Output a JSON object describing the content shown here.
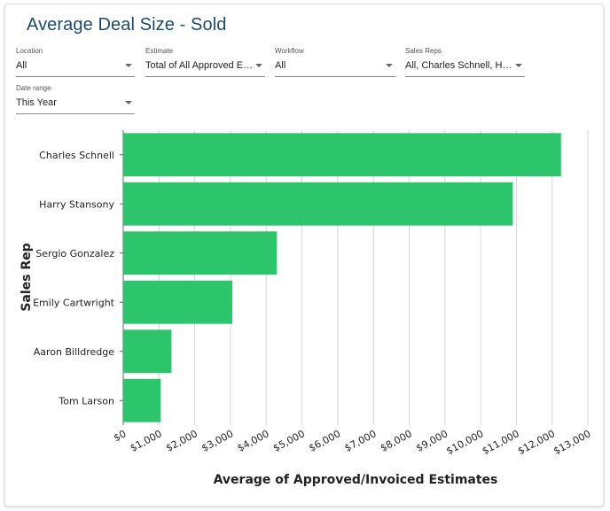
{
  "title": "Average Deal Size - Sold",
  "filters": {
    "location": {
      "label": "Location",
      "value": "All"
    },
    "estimate": {
      "label": "Estimate",
      "value": "Total of All Approved Es..."
    },
    "workflow": {
      "label": "Workflow",
      "value": "All"
    },
    "sales_reps": {
      "label": "Sales Reps",
      "value": "All, Charles Schnell, Harr..."
    },
    "date_range": {
      "label": "Date range",
      "value": "This Year"
    }
  },
  "colors": {
    "bar": "#2dc56b",
    "grid": "#d6d6d6",
    "title": "#1c4a73"
  },
  "chart_data": {
    "type": "bar",
    "orientation": "horizontal",
    "categories": [
      "Charles Schnell",
      "Harry Stansony",
      "Sergio Gonzalez",
      "Emily Cartwright",
      "Aaron Billdredge",
      "Tom Larson"
    ],
    "values": [
      12250,
      10900,
      4300,
      3050,
      1350,
      1050
    ],
    "xlabel": "Average of Approved/Invoiced Estimates",
    "ylabel": "Sales Rep",
    "xlim": [
      0,
      13000
    ],
    "xticks": [
      "$0",
      "$1,000",
      "$2,000",
      "$3,000",
      "$4,000",
      "$5,000",
      "$6,000",
      "$7,000",
      "$8,000",
      "$9,000",
      "$10,000",
      "$11,000",
      "$12,000",
      "$13,000"
    ],
    "grid": true,
    "legend": "none"
  }
}
